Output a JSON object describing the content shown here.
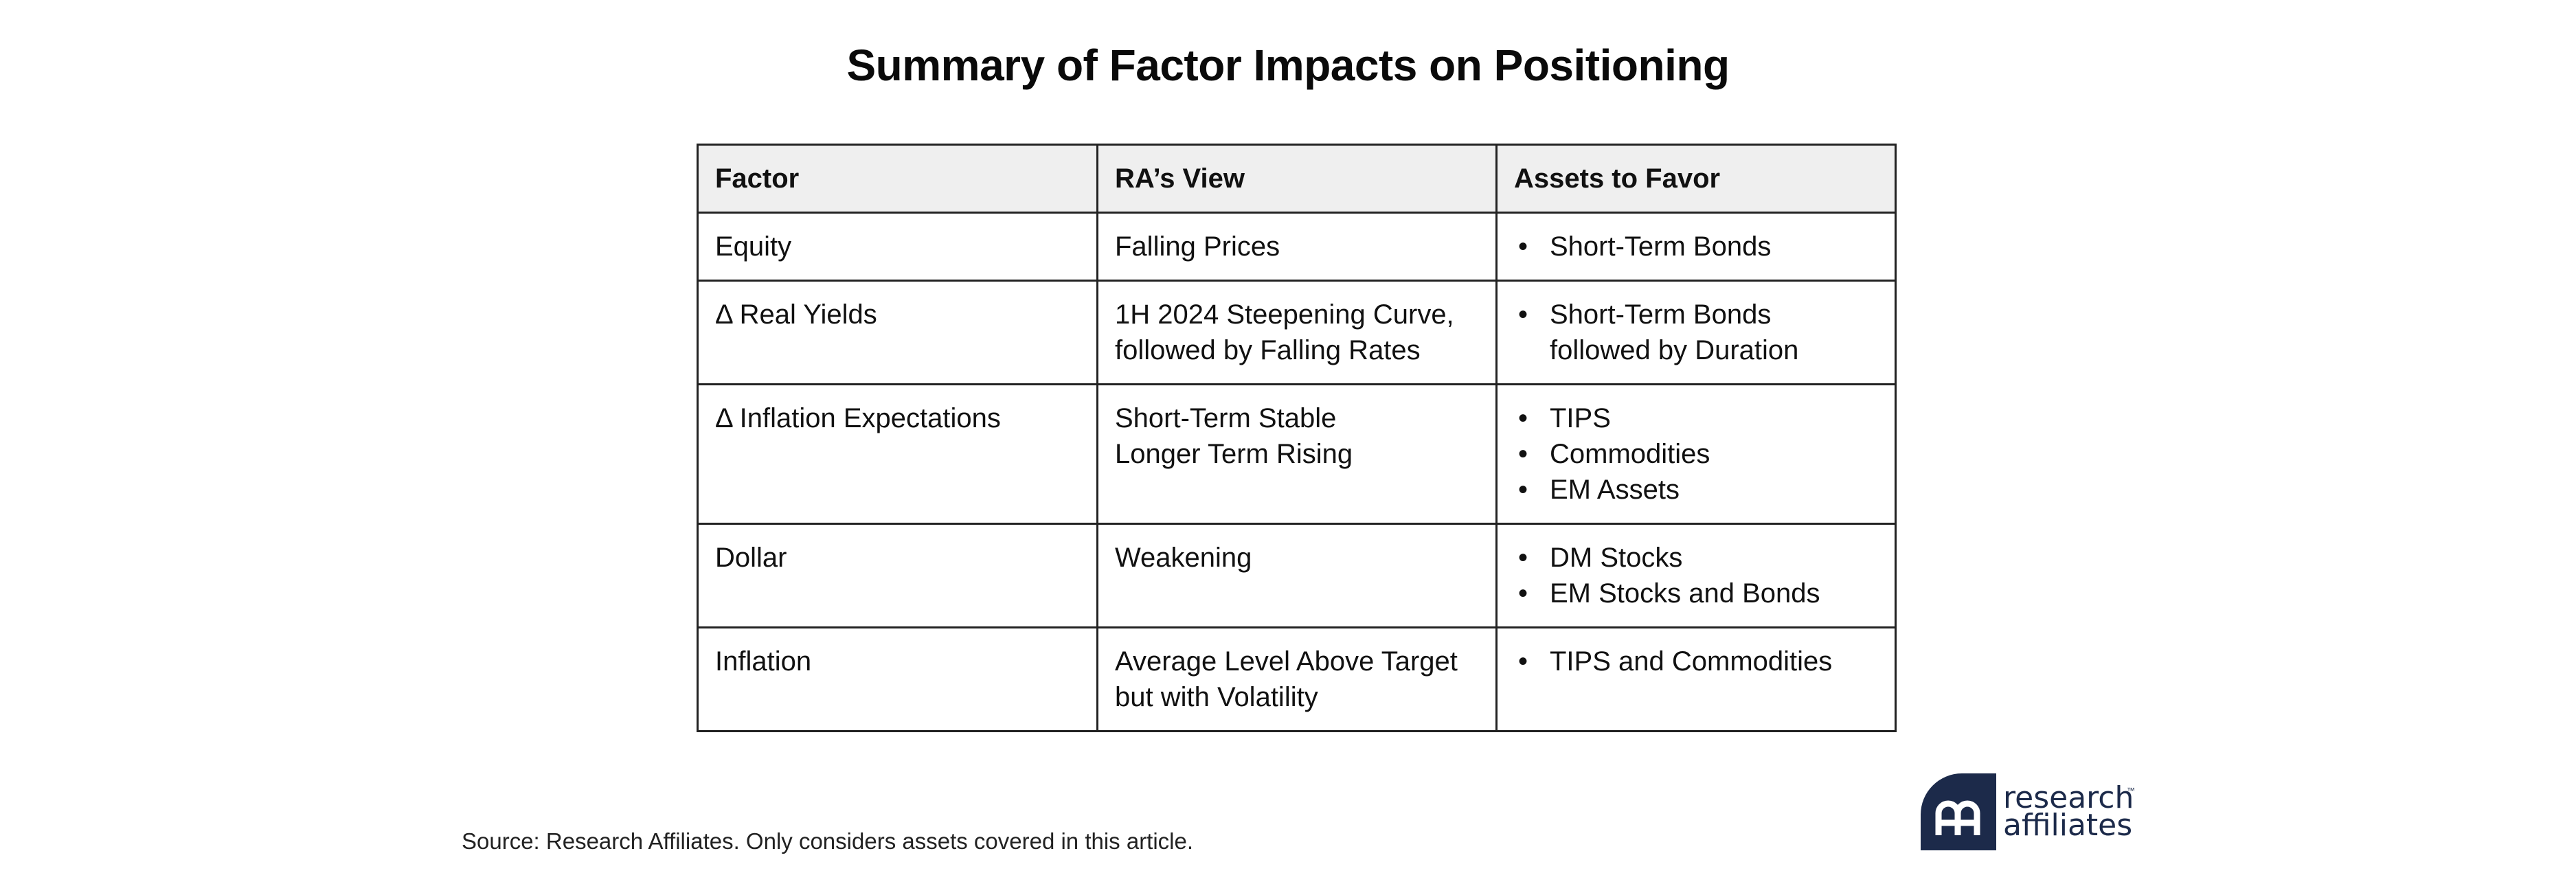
{
  "title": "Summary of Factor Impacts on Positioning",
  "table": {
    "headers": [
      "Factor",
      "RA’s View",
      "Assets to Favor"
    ],
    "rows": [
      {
        "factor": "Equity",
        "view": [
          "Falling Prices"
        ],
        "assets": [
          "Short-Term Bonds"
        ]
      },
      {
        "factor": "Δ Real Yields",
        "view": [
          "1H 2024 Steepening Curve,",
          "followed by Falling Rates"
        ],
        "assets": [
          "Short-Term Bonds followed by Duration"
        ]
      },
      {
        "factor": "Δ Inflation Expectations",
        "view": [
          "Short-Term Stable",
          "Longer Term Rising"
        ],
        "assets": [
          "TIPS",
          "Commodities",
          "EM Assets"
        ]
      },
      {
        "factor": "Dollar",
        "view": [
          "Weakening"
        ],
        "assets": [
          "DM Stocks",
          "EM Stocks and Bonds"
        ]
      },
      {
        "factor": "Inflation",
        "view": [
          "Average Level Above Target",
          "but with Volatility"
        ],
        "assets": [
          "TIPS and Commodities"
        ]
      }
    ]
  },
  "source": "Source: Research Affiliates. Only considers assets covered in this article.",
  "logo": {
    "line1": "research",
    "line2": "affiliates",
    "trademark": "™",
    "color": "#1c2a4a"
  },
  "bullet_char": "•"
}
